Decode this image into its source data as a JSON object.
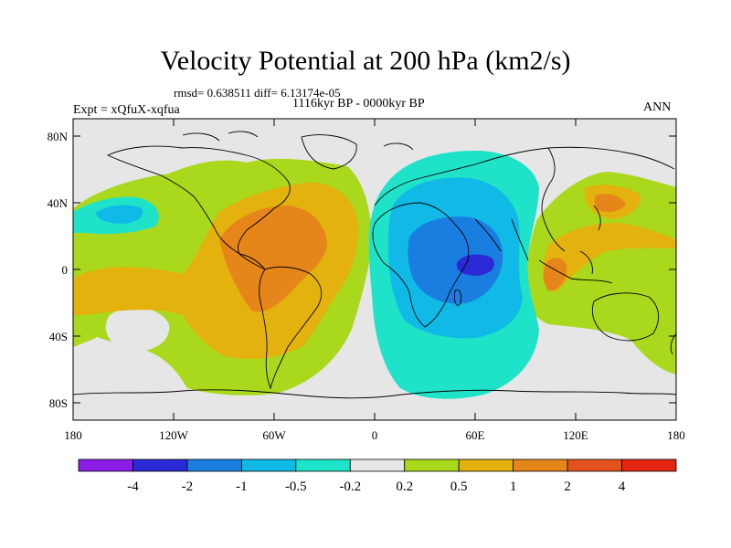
{
  "title": "Velocity Potential at 200 hPa (km2/s)",
  "stats": "rmsd= 0.638511 diff= 6.13174e-05",
  "period": "1116kyr BP - 0000kyr BP",
  "experiment": "Expt = xQfuX-xqfua",
  "season": "ANN",
  "y_axis_labels": [
    "80N",
    "40N",
    "0",
    "40S",
    "80S"
  ],
  "x_axis_labels": [
    "180",
    "120W",
    "60W",
    "0",
    "60E",
    "120E",
    "180"
  ],
  "colorbar": {
    "labels": [
      "-4",
      "-2",
      "-1",
      "-0.5",
      "-0.2",
      "0.2",
      "0.5",
      "1",
      "2",
      "4"
    ],
    "colors": [
      "#8b1ee6",
      "#2a2ad6",
      "#1a7ee0",
      "#10b9e6",
      "#1ee3c9",
      "#e6e6e6",
      "#a9d81c",
      "#e3b20e",
      "#e6851a",
      "#e3521c",
      "#e32612"
    ]
  },
  "map_colors": {
    "background": "#e6e6e6",
    "pos1": "#a9d81c",
    "pos2": "#e3b20e",
    "pos3": "#e6851a",
    "neg1": "#1ee3c9",
    "neg2": "#10b9e6",
    "neg3": "#1a7ee0",
    "neg4": "#2a2ad6"
  }
}
